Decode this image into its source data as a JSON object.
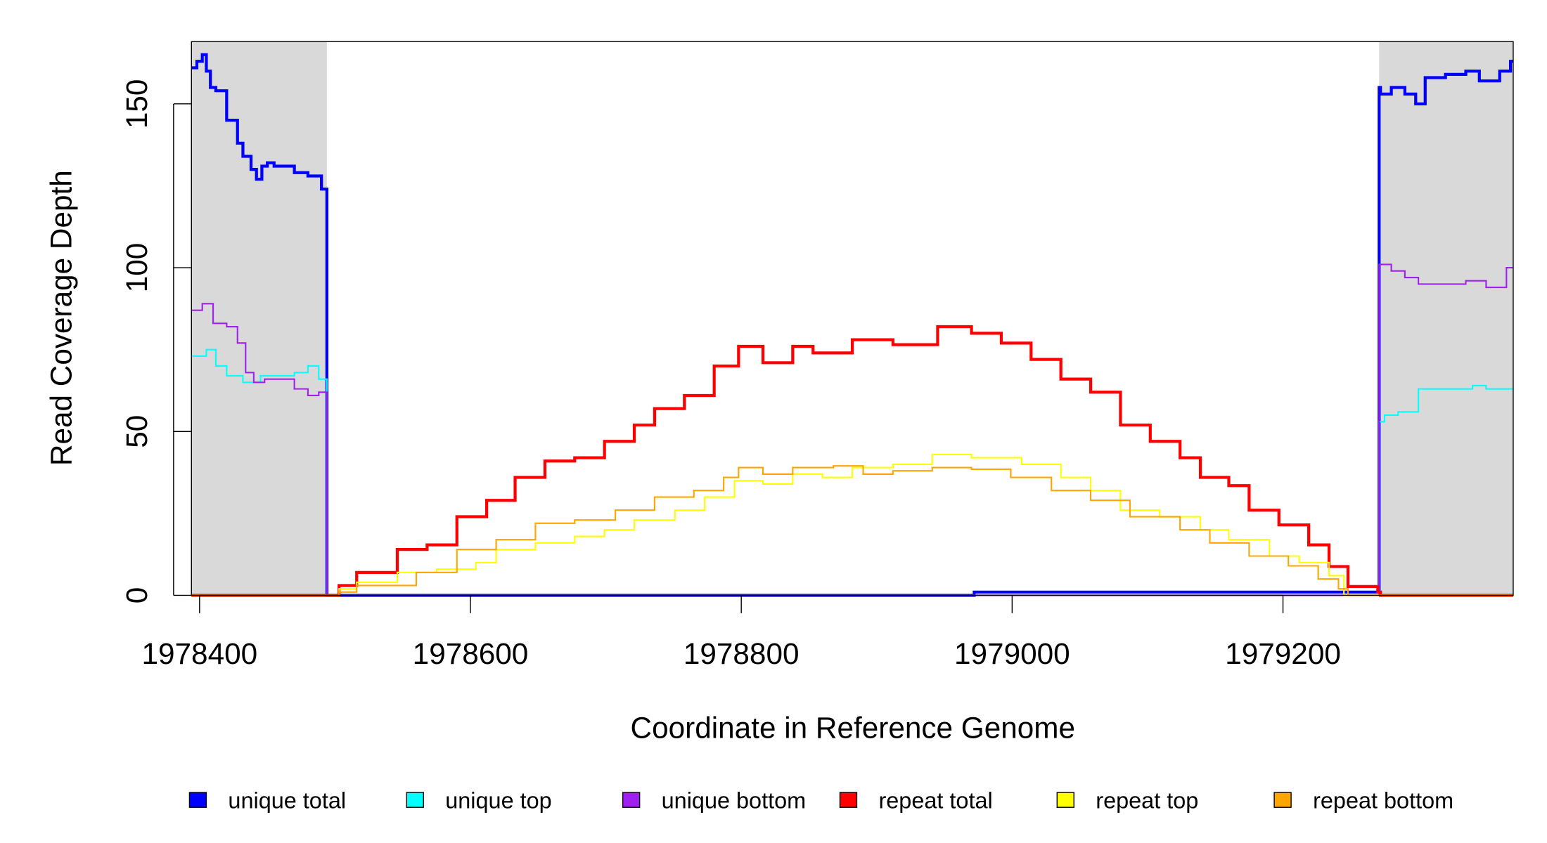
{
  "chart_data": {
    "type": "line",
    "step": true,
    "title": "",
    "xlabel": "Coordinate in Reference Genome",
    "ylabel": "Read Coverage Depth",
    "xlim": [
      1978394,
      1979370
    ],
    "ylim": [
      0,
      169
    ],
    "xticks": [
      1978400,
      1978600,
      1978800,
      1979000,
      1979200
    ],
    "yticks": [
      0,
      50,
      100,
      150
    ],
    "grid": false,
    "shaded_regions": [
      [
        1978394,
        1978494
      ],
      [
        1979271,
        1979370
      ]
    ],
    "shade_color": "#d9d9d9",
    "legend_position": "bottom",
    "series": [
      {
        "name": "unique total",
        "color": "#0000ff",
        "width": 3,
        "x": [
          1978394,
          1978398,
          1978402,
          1978405,
          1978408,
          1978412,
          1978420,
          1978428,
          1978432,
          1978438,
          1978442,
          1978446,
          1978450,
          1978455,
          1978470,
          1978480,
          1978490,
          1978494,
          1978495,
          1978972,
          1979271,
          1979272,
          1979280,
          1979290,
          1979298,
          1979305,
          1979320,
          1979335,
          1979345,
          1979360,
          1979368
        ],
        "y": [
          161,
          163,
          165,
          160,
          155,
          154,
          145,
          138,
          134,
          130,
          127,
          131,
          132,
          131,
          129,
          128,
          124,
          0,
          0,
          1,
          155,
          153,
          155,
          153,
          150,
          158,
          159,
          160,
          157,
          160,
          163
        ]
      },
      {
        "name": "unique top",
        "color": "#00ffff",
        "width": 1.5,
        "x": [
          1978394,
          1978405,
          1978412,
          1978420,
          1978432,
          1978445,
          1978470,
          1978480,
          1978488,
          1978494,
          1979271,
          1979275,
          1979285,
          1979300,
          1979340,
          1979350
        ],
        "y": [
          73,
          75,
          70,
          67,
          65,
          67,
          68,
          70,
          66,
          0,
          53,
          55,
          56,
          63,
          64,
          63
        ]
      },
      {
        "name": "unique bottom",
        "color": "#a020f0",
        "width": 1.5,
        "x": [
          1978394,
          1978402,
          1978410,
          1978420,
          1978428,
          1978434,
          1978440,
          1978448,
          1978470,
          1978480,
          1978488,
          1978494,
          1979271,
          1979280,
          1979290,
          1979300,
          1979320,
          1979335,
          1979350,
          1979365
        ],
        "y": [
          87,
          89,
          83,
          82,
          77,
          68,
          65,
          66,
          63,
          61,
          62,
          0,
          101,
          99,
          97,
          95,
          95,
          96,
          94,
          100
        ]
      },
      {
        "name": "repeat total",
        "color": "#ff0000",
        "width": 3,
        "x": [
          1978394,
          1978503,
          1978516,
          1978546,
          1978568,
          1978590,
          1978612,
          1978633,
          1978655,
          1978677,
          1978699,
          1978721,
          1978736,
          1978758,
          1978780,
          1978798,
          1978816,
          1978838,
          1978853,
          1978882,
          1978912,
          1978945,
          1978970,
          1978992,
          1979014,
          1979036,
          1979058,
          1979080,
          1979102,
          1979124,
          1979139,
          1979160,
          1979175,
          1979197,
          1979219,
          1979234,
          1979248,
          1979270,
          1979272
        ],
        "y": [
          0,
          3,
          7,
          14,
          15.4,
          24,
          29,
          36,
          41,
          42,
          47,
          52,
          57,
          61,
          70,
          76,
          71,
          76,
          74,
          78,
          76.5,
          82,
          80,
          77,
          72,
          66,
          62,
          52,
          47,
          42,
          36,
          33.5,
          26,
          21.5,
          15.4,
          8.8,
          2.7,
          1,
          0
        ]
      },
      {
        "name": "repeat top",
        "color": "#ffff00",
        "width": 1.5,
        "x": [
          1978394,
          1978503,
          1978516,
          1978546,
          1978575,
          1978604,
          1978619,
          1978648,
          1978677,
          1978699,
          1978721,
          1978751,
          1978773,
          1978795,
          1978816,
          1978838,
          1978860,
          1978882,
          1978912,
          1978941,
          1978970,
          1979007,
          1979036,
          1979058,
          1979080,
          1979109,
          1979139,
          1979160,
          1979190,
          1979212,
          1979234,
          1979245
        ],
        "y": [
          0,
          2,
          4,
          7,
          8,
          10,
          14,
          16,
          18,
          20,
          23,
          26,
          30,
          35,
          34,
          37,
          36,
          39,
          40,
          43,
          42,
          40,
          36,
          32,
          26,
          24,
          20,
          17,
          12,
          10,
          6,
          0
        ]
      },
      {
        "name": "repeat bottom",
        "color": "#ffa500",
        "width": 1.5,
        "x": [
          1978394,
          1978503,
          1978516,
          1978560,
          1978590,
          1978619,
          1978648,
          1978677,
          1978707,
          1978736,
          1978765,
          1978787,
          1978798,
          1978816,
          1978838,
          1978868,
          1978890,
          1978912,
          1978941,
          1978970,
          1978999,
          1979029,
          1979058,
          1979087,
          1979124,
          1979146,
          1979175,
          1979204,
          1979226,
          1979241,
          1979248
        ],
        "y": [
          0,
          1,
          3,
          7,
          14,
          17,
          22,
          23,
          26,
          30,
          32,
          36,
          39,
          37,
          39,
          39.5,
          37,
          38,
          39,
          38.5,
          36,
          32,
          29,
          24,
          20,
          16,
          12,
          9,
          5,
          2,
          0
        ]
      }
    ]
  }
}
